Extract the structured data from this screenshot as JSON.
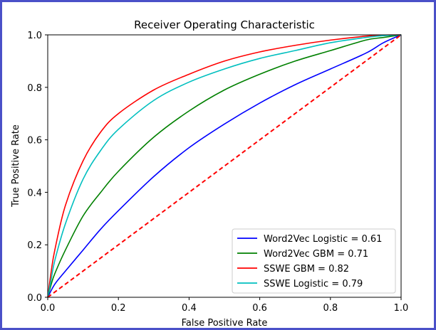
{
  "chart_data": {
    "type": "line",
    "title": "Receiver Operating Characteristic",
    "xlabel": "False Positive Rate",
    "ylabel": "True Positive Rate",
    "xlim": [
      0.0,
      1.0
    ],
    "ylim": [
      0.0,
      1.0
    ],
    "xticks": [
      "0.0",
      "0.2",
      "0.4",
      "0.6",
      "0.8",
      "1.0"
    ],
    "yticks": [
      "0.0",
      "0.2",
      "0.4",
      "0.6",
      "0.8",
      "1.0"
    ],
    "grid": false,
    "legend_position": "lower-right",
    "series": [
      {
        "name": "Word2Vec Logistic = 0.61",
        "color": "#0000ff",
        "x": [
          0.0,
          0.02,
          0.05,
          0.1,
          0.15,
          0.2,
          0.3,
          0.4,
          0.5,
          0.6,
          0.7,
          0.8,
          0.9,
          0.95,
          1.0
        ],
        "y": [
          0.0,
          0.05,
          0.1,
          0.18,
          0.26,
          0.33,
          0.46,
          0.57,
          0.66,
          0.74,
          0.81,
          0.87,
          0.93,
          0.97,
          1.0
        ]
      },
      {
        "name": "Word2Vec GBM = 0.71",
        "color": "#008000",
        "x": [
          0.0,
          0.01,
          0.02,
          0.05,
          0.1,
          0.15,
          0.2,
          0.3,
          0.4,
          0.5,
          0.6,
          0.7,
          0.8,
          0.9,
          0.95,
          1.0
        ],
        "y": [
          0.0,
          0.05,
          0.09,
          0.18,
          0.31,
          0.4,
          0.48,
          0.61,
          0.71,
          0.79,
          0.85,
          0.9,
          0.94,
          0.98,
          0.99,
          1.0
        ]
      },
      {
        "name": "SSWE GBM = 0.82",
        "color": "#ff0000",
        "x": [
          0.0,
          0.01,
          0.02,
          0.05,
          0.1,
          0.15,
          0.2,
          0.3,
          0.4,
          0.5,
          0.6,
          0.7,
          0.8,
          0.9,
          0.95,
          1.0
        ],
        "y": [
          0.0,
          0.1,
          0.18,
          0.35,
          0.52,
          0.63,
          0.7,
          0.79,
          0.85,
          0.9,
          0.935,
          0.96,
          0.98,
          0.995,
          0.999,
          1.0
        ]
      },
      {
        "name": "SSWE Logistic = 0.79",
        "color": "#00bfbf",
        "x": [
          0.0,
          0.01,
          0.02,
          0.05,
          0.1,
          0.15,
          0.2,
          0.3,
          0.4,
          0.5,
          0.6,
          0.7,
          0.8,
          0.9,
          0.95,
          1.0
        ],
        "y": [
          0.0,
          0.07,
          0.14,
          0.28,
          0.45,
          0.56,
          0.64,
          0.75,
          0.82,
          0.87,
          0.91,
          0.94,
          0.97,
          0.99,
          0.997,
          1.0
        ]
      }
    ],
    "reference_line": {
      "color": "#ff0000",
      "style": "dashed",
      "x": [
        0.0,
        1.0
      ],
      "y": [
        0.0,
        1.0
      ]
    }
  }
}
